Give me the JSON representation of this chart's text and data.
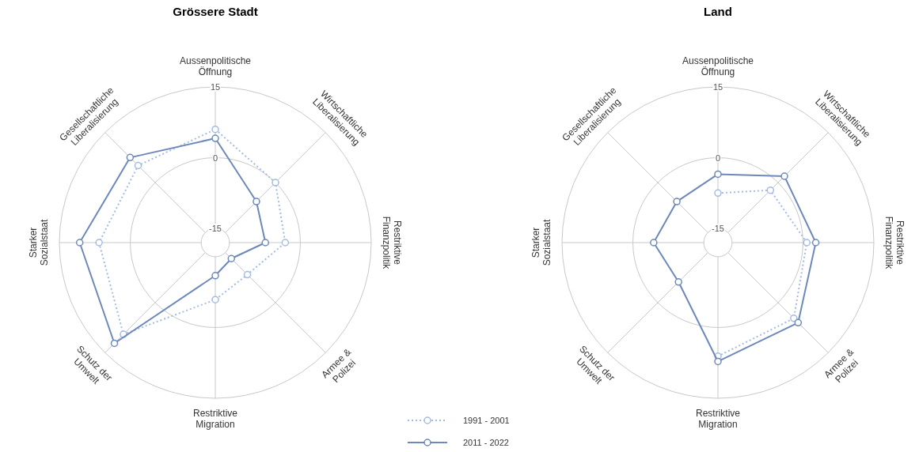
{
  "chart_data": [
    {
      "type": "radar",
      "title": "Grössere Stadt",
      "categories": [
        "Aussenpolitische Öffnung",
        "Wirtschaftliche Liberalisierung",
        "Restriktive Finanzpolitik",
        "Armee & Polizei",
        "Restriktive Migration",
        "Schutz der Umwelt",
        "Starker Sozialstaat",
        "Gesellschaftliche Liberalisierung"
      ],
      "ylim": [
        -18,
        15
      ],
      "yticks": [
        -15,
        0,
        15
      ],
      "legend": "bottom",
      "marker": "circle",
      "series": [
        {
          "name": "1991 - 2001",
          "color": "#a3bbe3",
          "line_style": "dotted",
          "values": [
            6,
            0,
            -3.2,
            -8.4,
            -5.9,
            9.5,
            6.6,
            5.1
          ]
        },
        {
          "name": "2011 - 2022",
          "color": "#6d88ba",
          "line_style": "solid",
          "values": [
            4.1,
            -5.7,
            -7.4,
            -13.2,
            -11,
            12.2,
            10.7,
            7.5
          ]
        }
      ]
    },
    {
      "type": "radar",
      "title": "Land",
      "categories": [
        "Aussenpolitische Öffnung",
        "Wirtschaftliche Liberalisierung",
        "Restriktive Finanzpolitik",
        "Armee & Polizei",
        "Restriktive Migration",
        "Schutz der Umwelt",
        "Starker Sozialstaat",
        "Gesellschaftliche Liberalisierung"
      ],
      "ylim": [
        -18,
        15
      ],
      "yticks": [
        -15,
        0,
        15
      ],
      "marker": "circle",
      "series": [
        {
          "color": "#a3bbe3",
          "line_style": "dotted",
          "values": [
            -7.5,
            -2.3,
            0.8,
            4.7,
            6.1,
            null,
            null,
            null
          ]
        },
        {
          "color": "#6d88ba",
          "line_style": "solid",
          "values": [
            -3.5,
            1.9,
            2.7,
            6,
            7.2,
            -6.2,
            -4.4,
            -5.7
          ]
        }
      ]
    }
  ]
}
